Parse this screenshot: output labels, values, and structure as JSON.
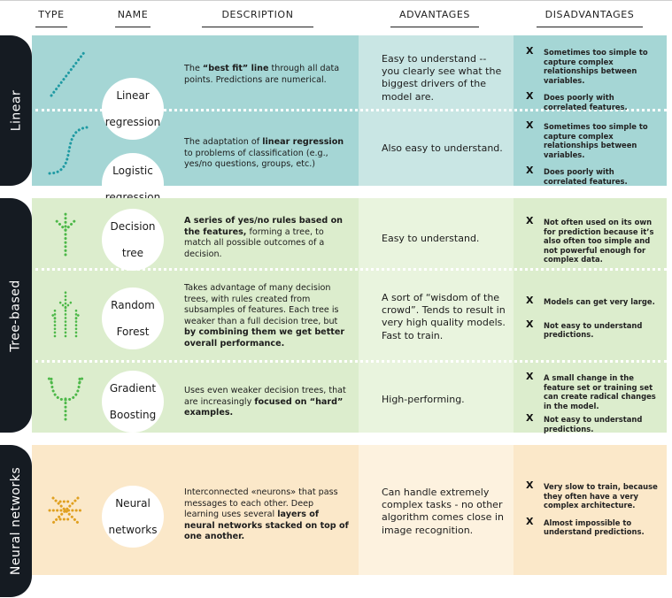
{
  "headers": {
    "type": "TYPE",
    "name": "NAME",
    "description": "DESCRIPTION",
    "advantages": "ADVANTAGES",
    "disadvantages": "DISADVANTAGES"
  },
  "colors": {
    "linear_main": "#a5d6d5",
    "linear_adv": "#c9e6e4",
    "tree_main": "#dcedcd",
    "tree_adv": "#e9f4de",
    "neural_main": "#fbe8c9",
    "neural_adv": "#fdf2df",
    "tab": "#151b22",
    "icon_teal": "#1f9aa3",
    "icon_green": "#4cb848",
    "icon_orange": "#e0a020"
  },
  "groups": [
    {
      "label": "Linear",
      "rows": [
        {
          "icon": "linear-regression-icon",
          "name": [
            "Linear",
            "regression"
          ],
          "description": [
            {
              "t": "The ",
              "b": false
            },
            {
              "t": "“best fit” line",
              "b": true
            },
            {
              "t": " through all data points. Predictions are numerical.",
              "b": false
            }
          ],
          "advantages": "Easy to understand -- you clearly see what the biggest drivers of the model are.",
          "disadvantages": [
            "Sometimes too simple to capture complex relationships between variables.",
            "Does poorly with correlated features."
          ]
        },
        {
          "icon": "logistic-regression-icon",
          "name": [
            "Logistic",
            "regression"
          ],
          "description": [
            {
              "t": "The adaptation of ",
              "b": false
            },
            {
              "t": "linear regression",
              "b": true
            },
            {
              "t": " to problems of classification (e.g., yes/no questions, groups, etc.)",
              "b": false
            }
          ],
          "advantages": "Also easy to understand.",
          "disadvantages": [
            "Sometimes too simple to capture complex relationships between variables.",
            "Does poorly with correlated features."
          ]
        }
      ]
    },
    {
      "label": "Tree-based",
      "rows": [
        {
          "icon": "decision-tree-icon",
          "name": [
            "Decision",
            "tree"
          ],
          "description": [
            {
              "t": "A series of yes/no rules based on the features,",
              "b": true
            },
            {
              "t": " forming a tree, to match all possible outcomes of a decision.",
              "b": false
            }
          ],
          "advantages": "Easy to understand.",
          "disadvantages": [
            "Not often used on its own for prediction because it’s also often too simple  and not powerful enough for complex data."
          ]
        },
        {
          "icon": "random-forest-icon",
          "name": [
            "Random",
            "Forest"
          ],
          "description": [
            {
              "t": "Takes advantage of many decision trees, with rules created from subsamples of features. Each tree is weaker than a full decision tree, but ",
              "b": false
            },
            {
              "t": "by combining them we get better overall performance.",
              "b": true
            }
          ],
          "advantages": "A sort of “wisdom of the crowd”. Tends to result in very high quality models. Fast to train.",
          "disadvantages": [
            "Models can get very large.",
            "Not easy to understand predictions."
          ]
        },
        {
          "icon": "gradient-boosting-icon",
          "name": [
            "Gradient",
            "Boosting"
          ],
          "description": [
            {
              "t": "Uses even weaker decision trees, that are increasingly ",
              "b": false
            },
            {
              "t": "focused on “hard” examples.",
              "b": true
            }
          ],
          "advantages": "High-performing.",
          "disadvantages": [
            "A small change in the feature set or training set can create radical changes in the model.",
            "Not easy to understand predictions."
          ]
        }
      ]
    },
    {
      "label": "Neural  networks",
      "rows": [
        {
          "icon": "neural-network-icon",
          "name": [
            "Neural",
            "networks"
          ],
          "description": [
            {
              "t": "Interconnected «neurons» that pass messages to each other. Deep learning uses several ",
              "b": false
            },
            {
              "t": "layers of neural networks stacked on top of one another.",
              "b": true
            }
          ],
          "advantages": "Can handle extremely complex tasks - no other algorithm comes close in image recognition.",
          "disadvantages": [
            "Very slow to train, because they often have a very complex architecture.",
            "Almost impossible to understand predictions."
          ]
        }
      ]
    }
  ]
}
